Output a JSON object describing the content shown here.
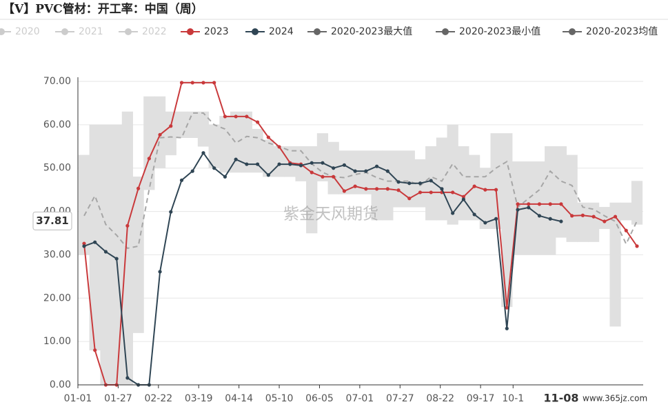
{
  "chart_data": {
    "type": "line",
    "title": "【V】PVC管材：开工率：中国（周）",
    "x": [
      4,
      11,
      18,
      25,
      32,
      39,
      46,
      53,
      60,
      67,
      74,
      81,
      88,
      95,
      102,
      109,
      116,
      123,
      130,
      137,
      144,
      151,
      158,
      165,
      172,
      179,
      186,
      193,
      200,
      207,
      214,
      221,
      228,
      235,
      242,
      249,
      256,
      263,
      270,
      277,
      284,
      291,
      298,
      305,
      312,
      319,
      326,
      333,
      340,
      347,
      354,
      361
    ],
    "xlim": [
      0,
      365
    ],
    "xticks": [
      {
        "value": 0,
        "label": "01-01"
      },
      {
        "value": 26,
        "label": "01-27"
      },
      {
        "value": 52,
        "label": "02-22"
      },
      {
        "value": 78,
        "label": "03-19"
      },
      {
        "value": 104,
        "label": "04-14"
      },
      {
        "value": 130,
        "label": "05-10"
      },
      {
        "value": 156,
        "label": "06-05"
      },
      {
        "value": 182,
        "label": "07-01"
      },
      {
        "value": 208,
        "label": "07-27"
      },
      {
        "value": 234,
        "label": "08-22"
      },
      {
        "value": 260,
        "label": "09-17"
      },
      {
        "value": 281,
        "label": "10-1"
      }
    ],
    "ylim": [
      0,
      70
    ],
    "yticks": [
      {
        "value": 0,
        "label": "0.00"
      },
      {
        "value": 10,
        "label": "10.00"
      },
      {
        "value": 20,
        "label": "20.00"
      },
      {
        "value": 30,
        "label": "30.00"
      },
      {
        "value": 40,
        "label": "40.00"
      },
      {
        "value": 50,
        "label": "50.00"
      },
      {
        "value": 60,
        "label": "60.00"
      },
      {
        "value": 70,
        "label": "70.00"
      }
    ],
    "grid": true,
    "series": [
      {
        "name": "2020",
        "color": "#cccccc",
        "visible": false
      },
      {
        "name": "2021",
        "color": "#cccccc",
        "visible": false
      },
      {
        "name": "2022",
        "color": "#cccccc",
        "visible": false
      },
      {
        "name": "2023",
        "color": "#c9393b",
        "style": "line",
        "values": [
          32.6,
          8.0,
          0,
          0,
          36.7,
          45.3,
          52.2,
          57.7,
          59.7,
          69.7,
          69.7,
          69.7,
          69.7,
          61.9,
          61.9,
          61.9,
          60.6,
          57.1,
          54.9,
          51.2,
          50.9,
          49.0,
          48.0,
          48.0,
          44.7,
          45.8,
          45.2,
          45.2,
          45.2,
          44.9,
          43.0,
          44.4,
          44.4,
          44.4,
          44.4,
          43.4,
          45.8,
          45.0,
          45.0,
          17.8,
          41.7,
          41.7,
          41.7,
          41.7,
          41.7,
          39.0,
          39.1,
          38.8,
          37.7,
          38.8,
          35.6,
          32.0
        ]
      },
      {
        "name": "2024",
        "color": "#2f4554",
        "style": "line",
        "values": [
          32.0,
          32.9,
          30.7,
          29.1,
          1.6,
          0,
          0,
          26.1,
          39.9,
          47.2,
          49.3,
          53.5,
          50.0,
          48.0,
          52.0,
          50.9,
          50.9,
          48.4,
          50.9,
          50.9,
          50.6,
          51.2,
          51.2,
          50.0,
          50.7,
          49.3,
          49.3,
          50.4,
          49.3,
          46.8,
          46.5,
          46.5,
          47.1,
          45.2,
          39.6,
          42.8,
          39.3,
          37.4,
          38.3,
          13.0,
          40.4,
          40.9,
          39.0,
          38.3,
          37.7,
          null,
          null,
          null,
          null,
          null,
          null,
          null
        ]
      },
      {
        "name": "2020-2023最大值",
        "color": "#e0e0e0",
        "style": "band-top",
        "values": [
          53,
          60,
          60,
          60,
          63,
          48,
          66.5,
          66.5,
          63,
          63,
          63,
          63,
          60,
          62,
          63,
          63,
          59,
          56.5,
          55,
          55,
          55,
          55,
          58,
          56,
          54,
          54,
          54,
          54,
          54,
          54,
          54,
          52,
          55,
          57,
          60,
          55,
          53,
          50,
          58,
          58,
          51.5,
          51.5,
          51.5,
          55,
          55,
          53,
          42,
          42,
          41,
          42,
          42,
          47
        ]
      },
      {
        "name": "2020-2023最小值",
        "color": "#e0e0e0",
        "style": "band-bottom",
        "values": [
          30,
          8,
          0,
          0,
          0,
          12,
          45,
          50,
          53,
          57,
          57,
          55,
          50,
          49,
          49,
          49,
          49,
          48,
          48,
          48,
          47,
          35,
          47,
          44,
          44,
          44,
          44,
          38,
          38,
          41,
          41,
          41,
          38,
          38,
          37,
          38,
          38,
          36,
          36,
          18,
          30,
          30,
          30,
          30,
          34,
          33,
          33,
          33,
          36,
          13.5,
          38,
          37
        ]
      },
      {
        "name": "2020-2023均值",
        "color": "#a6a6a6",
        "style": "dashed",
        "values": [
          39,
          43.6,
          37,
          34.5,
          31.5,
          32,
          45,
          57,
          57.2,
          57,
          62.7,
          62.7,
          60,
          59,
          55.8,
          57.3,
          57,
          55.8,
          55,
          54,
          54,
          51,
          49,
          48,
          47.8,
          48.5,
          49,
          47.8,
          47,
          47,
          47,
          46,
          48,
          47,
          51,
          48,
          48,
          48,
          50,
          51.5,
          41,
          43,
          45,
          49.3,
          47,
          46,
          41,
          40.5,
          39,
          37.7,
          32.5,
          37.8
        ]
      }
    ],
    "legend_colors": {
      "2020-2023最大值": "#666666",
      "2020-2023最小值": "#666666",
      "2020-2023均值": "#666666"
    },
    "axis_pointer": {
      "y": 37.81,
      "x": {
        "value": 312,
        "label": "11-08"
      }
    },
    "watermark": "紫金天风期货",
    "source_watermark": "www.365jz.com"
  }
}
